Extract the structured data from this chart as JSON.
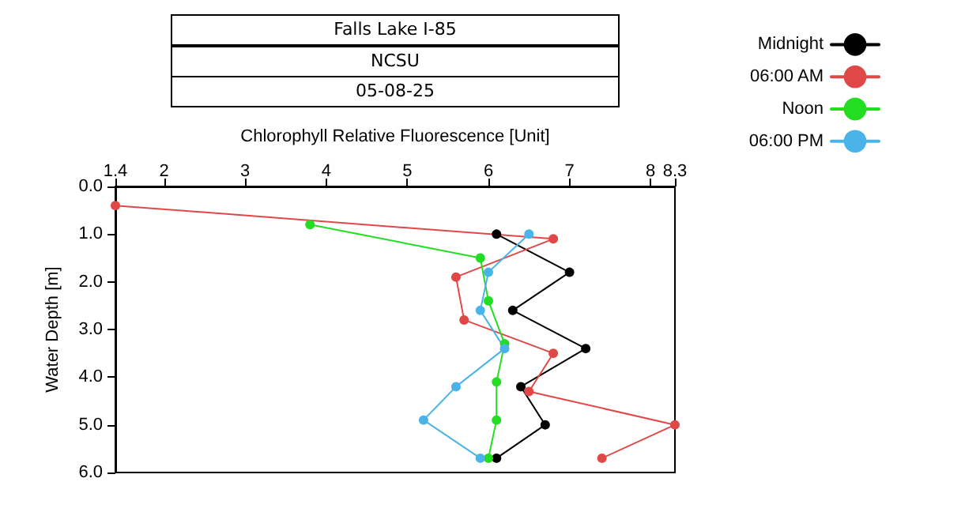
{
  "chart_data": {
    "type": "line",
    "title": "Falls Lake I-85",
    "subtitle": "NCSU",
    "annotations": [
      "05-08-25"
    ],
    "xlabel": "Chlorophyll Relative Fluorescence [Unit]",
    "ylabel": "Water Depth [m]",
    "xlim": [
      1.4,
      8.3
    ],
    "xticks": [
      1.4,
      2,
      3,
      4,
      5,
      6,
      7,
      8,
      8.3
    ],
    "ylim": [
      6,
      0
    ],
    "yticks": [
      {
        "value": 0,
        "label": "0.0"
      },
      {
        "value": 1,
        "label": "1.0"
      },
      {
        "value": 2,
        "label": "2.0"
      },
      {
        "value": 3,
        "label": "3.0"
      },
      {
        "value": 4,
        "label": "4.0"
      },
      {
        "value": 5,
        "label": "5.0"
      },
      {
        "value": 6,
        "label": "6.0"
      }
    ],
    "grid": false,
    "legend": "top right",
    "marker": "circle",
    "line_style": "solid",
    "series": [
      {
        "name": "Midnight",
        "color": "#000000",
        "x": [
          6.1,
          7.0,
          6.3,
          7.2,
          6.4,
          6.7,
          6.1
        ],
        "values": [
          1.0,
          1.8,
          2.6,
          3.4,
          4.2,
          5.0,
          5.7
        ]
      },
      {
        "name": "06:00 AM",
        "color": "#e04848",
        "x": [
          1.4,
          6.8,
          5.6,
          5.7,
          6.8,
          6.5,
          8.3,
          7.4
        ],
        "values": [
          0.4,
          1.1,
          1.9,
          2.8,
          3.5,
          4.3,
          5.0,
          5.7
        ]
      },
      {
        "name": "Noon",
        "color": "#22dd22",
        "x": [
          3.8,
          5.9,
          6.0,
          6.2,
          6.1,
          6.1,
          6.0
        ],
        "values": [
          0.8,
          1.5,
          2.4,
          3.3,
          4.1,
          4.9,
          5.7
        ]
      },
      {
        "name": "06:00 PM",
        "color": "#4ab4e8",
        "x": [
          6.5,
          6.0,
          5.9,
          6.2,
          5.6,
          5.2,
          5.9
        ],
        "values": [
          1.0,
          1.8,
          2.6,
          3.4,
          4.2,
          4.9,
          5.7
        ]
      }
    ]
  }
}
